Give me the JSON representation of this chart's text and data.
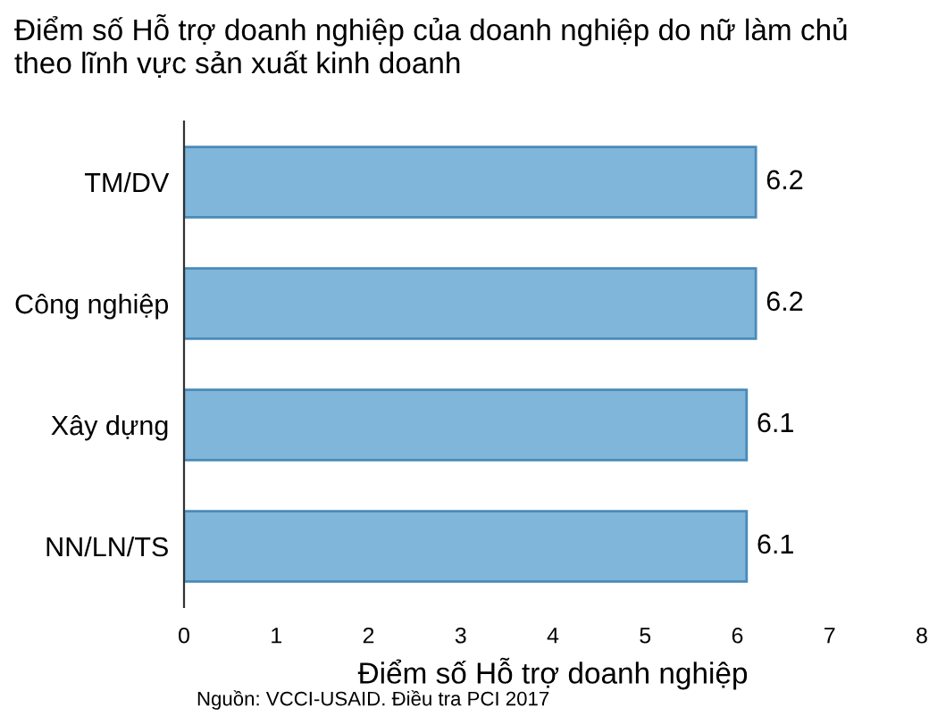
{
  "chart_data": {
    "type": "bar",
    "orientation": "horizontal",
    "title": "Điểm số Hỗ trợ doanh nghiệp của doanh nghiệp do nữ làm chủ\ntheo lĩnh vực sản xuất kinh doanh",
    "xlabel": "Điểm số Hỗ trợ doanh nghiệp",
    "categories": [
      "TM/DV",
      "Công nghiệp",
      "Xây dựng",
      "NN/LN/TS"
    ],
    "values": [
      6.2,
      6.2,
      6.1,
      6.1
    ],
    "color": "#7fb6d9",
    "data_labels": true,
    "xlim": [
      0,
      8
    ],
    "xticks": [
      0,
      1,
      2,
      3,
      4,
      5,
      6,
      7,
      8
    ],
    "grid": false,
    "legend": false,
    "annotations": [
      "Nguồn: VCCI-USAID. Điều tra PCI 2017"
    ]
  }
}
